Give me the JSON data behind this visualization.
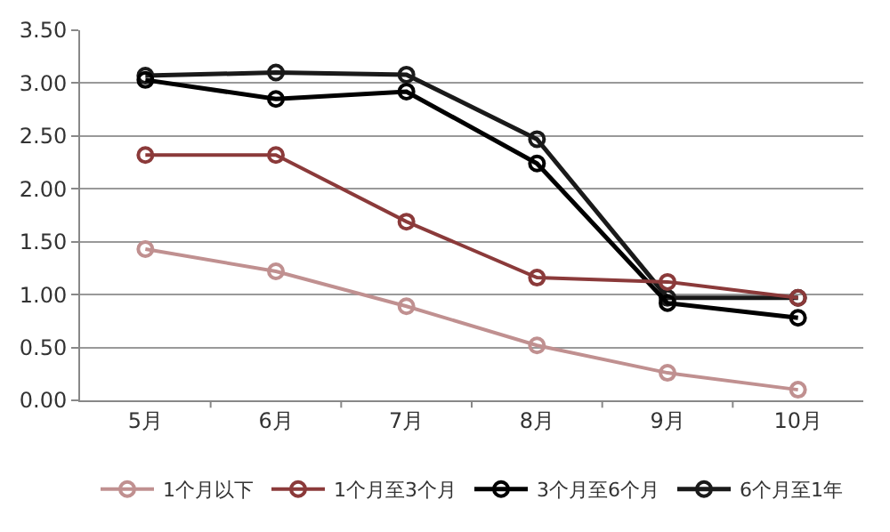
{
  "chart_data": {
    "type": "line",
    "categories": [
      "5月",
      "6月",
      "7月",
      "8月",
      "9月",
      "10月"
    ],
    "series": [
      {
        "name": "1个月以下",
        "color": "#c09090",
        "values": [
          1.43,
          1.22,
          0.89,
          0.52,
          0.26,
          0.1
        ]
      },
      {
        "name": "1个月至3个月",
        "color": "#8b3a3a",
        "values": [
          2.32,
          2.32,
          1.69,
          1.16,
          1.12,
          0.97
        ]
      },
      {
        "name": "3个月至6个月",
        "color": "#000000",
        "values": [
          3.03,
          2.85,
          2.92,
          2.24,
          0.92,
          0.78
        ]
      },
      {
        "name": "6个月至1年",
        "color": "#1a1a1a",
        "values": [
          3.07,
          3.1,
          3.08,
          2.47,
          0.97,
          0.97
        ]
      }
    ],
    "ylim": [
      0,
      3.5
    ],
    "yticks": [
      {
        "value": 0,
        "label": "0.00"
      },
      {
        "value": 0.5,
        "label": "0.50"
      },
      {
        "value": 1,
        "label": "1.00"
      },
      {
        "value": 1.5,
        "label": "1.50"
      },
      {
        "value": 2,
        "label": "2.00"
      },
      {
        "value": 2.5,
        "label": "2.50"
      },
      {
        "value": 3,
        "label": "3.00"
      },
      {
        "value": 3.5,
        "label": "3.50"
      }
    ],
    "grid": "y",
    "legend": "bottom",
    "marker": "circle",
    "line_style": "solid"
  }
}
